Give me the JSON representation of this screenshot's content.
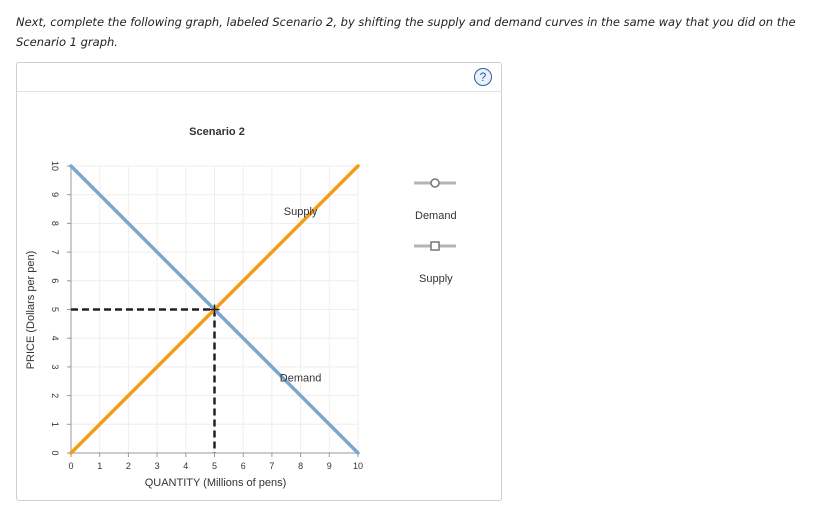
{
  "instructions": "Next, complete the following graph, labeled Scenario 2, by shifting the supply and demand curves in the same way that you did on the Scenario 1 graph.",
  "help_icon": "?",
  "colors": {
    "demand": "#7ba7cc",
    "supply": "#f39c1a",
    "equilibrium": "#222222",
    "grid": "#eeeeee",
    "axis": "#999999"
  },
  "legend": {
    "items": [
      {
        "label": "Demand",
        "icon": "circle-marker-icon"
      },
      {
        "label": "Supply",
        "icon": "square-marker-icon"
      }
    ]
  },
  "chart_data": {
    "type": "line",
    "title": "Scenario 2",
    "xlabel": "QUANTITY (Millions of pens)",
    "ylabel": "PRICE (Dollars per pen)",
    "xlim": [
      0,
      10
    ],
    "ylim": [
      0,
      10
    ],
    "xticks": [
      "0",
      "1",
      "2",
      "3",
      "4",
      "5",
      "6",
      "7",
      "8",
      "9",
      "10"
    ],
    "yticks": [
      "0",
      "1",
      "2",
      "3",
      "4",
      "5",
      "6",
      "7",
      "8",
      "9",
      "10"
    ],
    "grid": true,
    "series": [
      {
        "name": "Demand",
        "points": [
          [
            0,
            10
          ],
          [
            10,
            0
          ]
        ],
        "label": "Demand",
        "label_at": [
          8,
          2.5
        ]
      },
      {
        "name": "Supply",
        "points": [
          [
            0,
            0
          ],
          [
            10,
            10
          ]
        ],
        "label": "Supply",
        "label_at": [
          8,
          8.3
        ]
      }
    ],
    "equilibrium": {
      "x": 5,
      "y": 5
    }
  }
}
